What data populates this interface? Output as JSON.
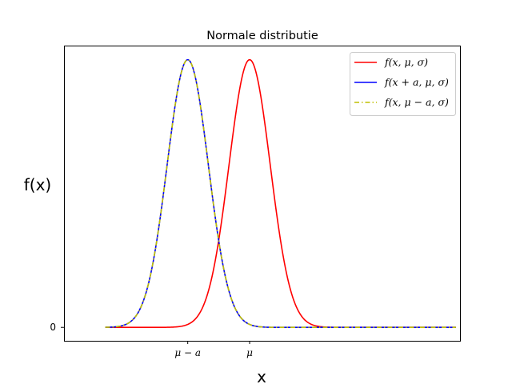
{
  "chart_data": {
    "type": "line",
    "title": "Normale distributie",
    "xlabel": "x",
    "ylabel": "f(x)",
    "mu": 0,
    "a": 1.5,
    "sigma": 0.5,
    "xlim": [
      -4.5,
      5.1
    ],
    "ylim": [
      -0.04,
      0.84
    ],
    "x_range": [
      -3.5,
      5.0
    ],
    "x_ticks": [
      {
        "value": -1.5,
        "label": "μ − a"
      },
      {
        "value": 0,
        "label": "μ"
      }
    ],
    "y_ticks": [
      {
        "value": 0,
        "label": "0"
      }
    ],
    "series": [
      {
        "name": "f(x, μ, σ)",
        "shift": 0,
        "color": "#ff0000",
        "dash": "solid"
      },
      {
        "name": "f(x + a, μ, σ)",
        "shift": 1.5,
        "color": "#0000ff",
        "dash": "solid"
      },
      {
        "name": "f(x, μ − a, σ)",
        "shift": 1.5,
        "color": "#bfbf00",
        "dash": "dashdot"
      }
    ],
    "legend_position": "top-right",
    "grid": false
  }
}
